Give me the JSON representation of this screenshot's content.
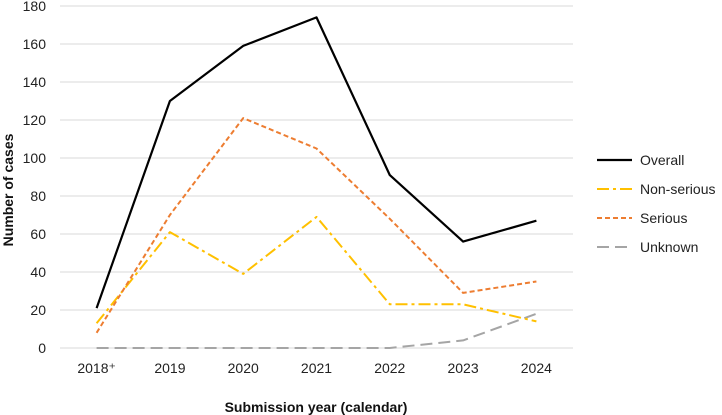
{
  "chart_data": {
    "type": "line",
    "title": "",
    "xlabel": "Submission year (calendar)",
    "ylabel": "Number of cases",
    "categories": [
      "2018⁺",
      "2019",
      "2020",
      "2021",
      "2022",
      "2023",
      "2024"
    ],
    "ylim": [
      0,
      180
    ],
    "yticks": [
      0,
      20,
      40,
      60,
      80,
      100,
      120,
      140,
      160,
      180
    ],
    "grid": "horizontal",
    "legend_position": "right",
    "series": [
      {
        "name": "Overall",
        "values": [
          21,
          130,
          159,
          174,
          91,
          56,
          67
        ],
        "color": "#000000",
        "dash": "solid"
      },
      {
        "name": "Non-serious",
        "values": [
          13,
          61,
          39,
          69,
          23,
          23,
          14
        ],
        "color": "#FFC000",
        "dash": "dashdot"
      },
      {
        "name": "Serious",
        "values": [
          8,
          70,
          121,
          105,
          68,
          29,
          35
        ],
        "color": "#ED7D31",
        "dash": "short-dash"
      },
      {
        "name": "Unknown",
        "values": [
          0,
          0,
          0,
          0,
          0,
          4,
          18
        ],
        "color": "#A5A5A5",
        "dash": "long-dash"
      }
    ]
  }
}
